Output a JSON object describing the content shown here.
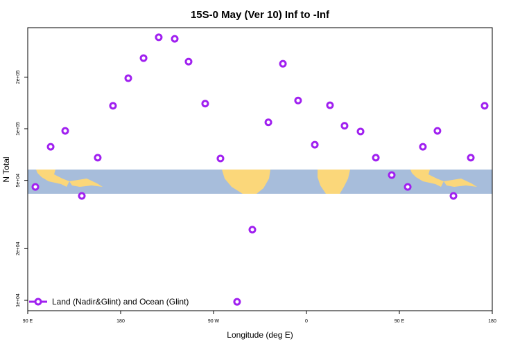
{
  "chart_data": {
    "type": "scatter",
    "title": "15S-0 May (Ver 10)   Inf to -Inf",
    "x_label": "Longitude (deg E)",
    "y_label": "N Total",
    "log_y": true,
    "xlim": [
      90,
      540
    ],
    "ylim": [
      8700,
      388000
    ],
    "xticks": [
      {
        "value": 90,
        "label": "90 E"
      },
      180,
      {
        "value": 270,
        "label": "90 W"
      },
      {
        "value": 360,
        "label": "0"
      },
      {
        "value": 450,
        "label": "90 E"
      },
      {
        "value": 540,
        "label": "180"
      }
    ],
    "yticks": [
      {
        "value": 10000,
        "label": "1e+04"
      },
      {
        "value": 20000,
        "label": "2e+04"
      },
      {
        "value": 50000,
        "label": "5e+04"
      },
      {
        "value": 100000,
        "label": "1e+05"
      },
      {
        "value": 200000,
        "label": "2e+05"
      }
    ],
    "legend": "bottom-left",
    "series": [
      {
        "name": "Land (Nadir&Glint) and Ocean (Glint)",
        "color": "#a020f0",
        "x": [
          97.4,
          112.2,
          126.3,
          142.4,
          157.8,
          172.6,
          187.4,
          202.2,
          216.9,
          232.4,
          245.8,
          261.9,
          276.7,
          292.8,
          307.6,
          323.1,
          337.2,
          351.9,
          368.1,
          382.8,
          396.9,
          412.4,
          427.2,
          442.6,
          458.1,
          472.8,
          486.9,
          502.4,
          519.2,
          532.6
        ],
        "values": [
          45800,
          78500,
          97200,
          40600,
          67800,
          136000,
          197000,
          258000,
          341000,
          334000,
          246000,
          140000,
          67100,
          9800,
          25800,
          109000,
          239000,
          146000,
          80700,
          137000,
          104000,
          96400,
          67800,
          53700,
          45800,
          78500,
          97200,
          40600,
          67800,
          136000
        ]
      }
    ]
  }
}
